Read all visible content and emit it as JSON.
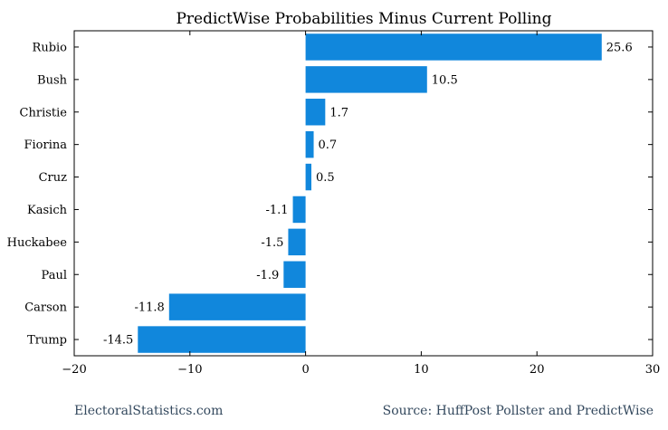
{
  "chart_data": {
    "type": "bar",
    "orientation": "horizontal",
    "title": "PredictWise Probabilities Minus Current Polling",
    "categories": [
      "Rubio",
      "Bush",
      "Christie",
      "Fiorina",
      "Cruz",
      "Kasich",
      "Huckabee",
      "Paul",
      "Carson",
      "Trump"
    ],
    "values": [
      25.6,
      10.5,
      1.7,
      0.7,
      0.5,
      -1.1,
      -1.5,
      -1.9,
      -11.8,
      -14.5
    ],
    "data_labels": [
      "25.6",
      "10.5",
      "1.7",
      "0.7",
      "0.5",
      "-1.1",
      "-1.5",
      "-1.9",
      "-11.8",
      "-14.5"
    ],
    "xlim": [
      -20,
      30
    ],
    "xticks": [
      -20,
      -10,
      0,
      10,
      20,
      30
    ],
    "xtick_labels": [
      "−20",
      "−10",
      "0",
      "10",
      "20",
      "30"
    ],
    "bar_color": "#1187dc",
    "grid": false
  },
  "footer": {
    "left": "ElectoralStatistics.com",
    "right": "Source: HuffPost Pollster and PredictWise"
  }
}
